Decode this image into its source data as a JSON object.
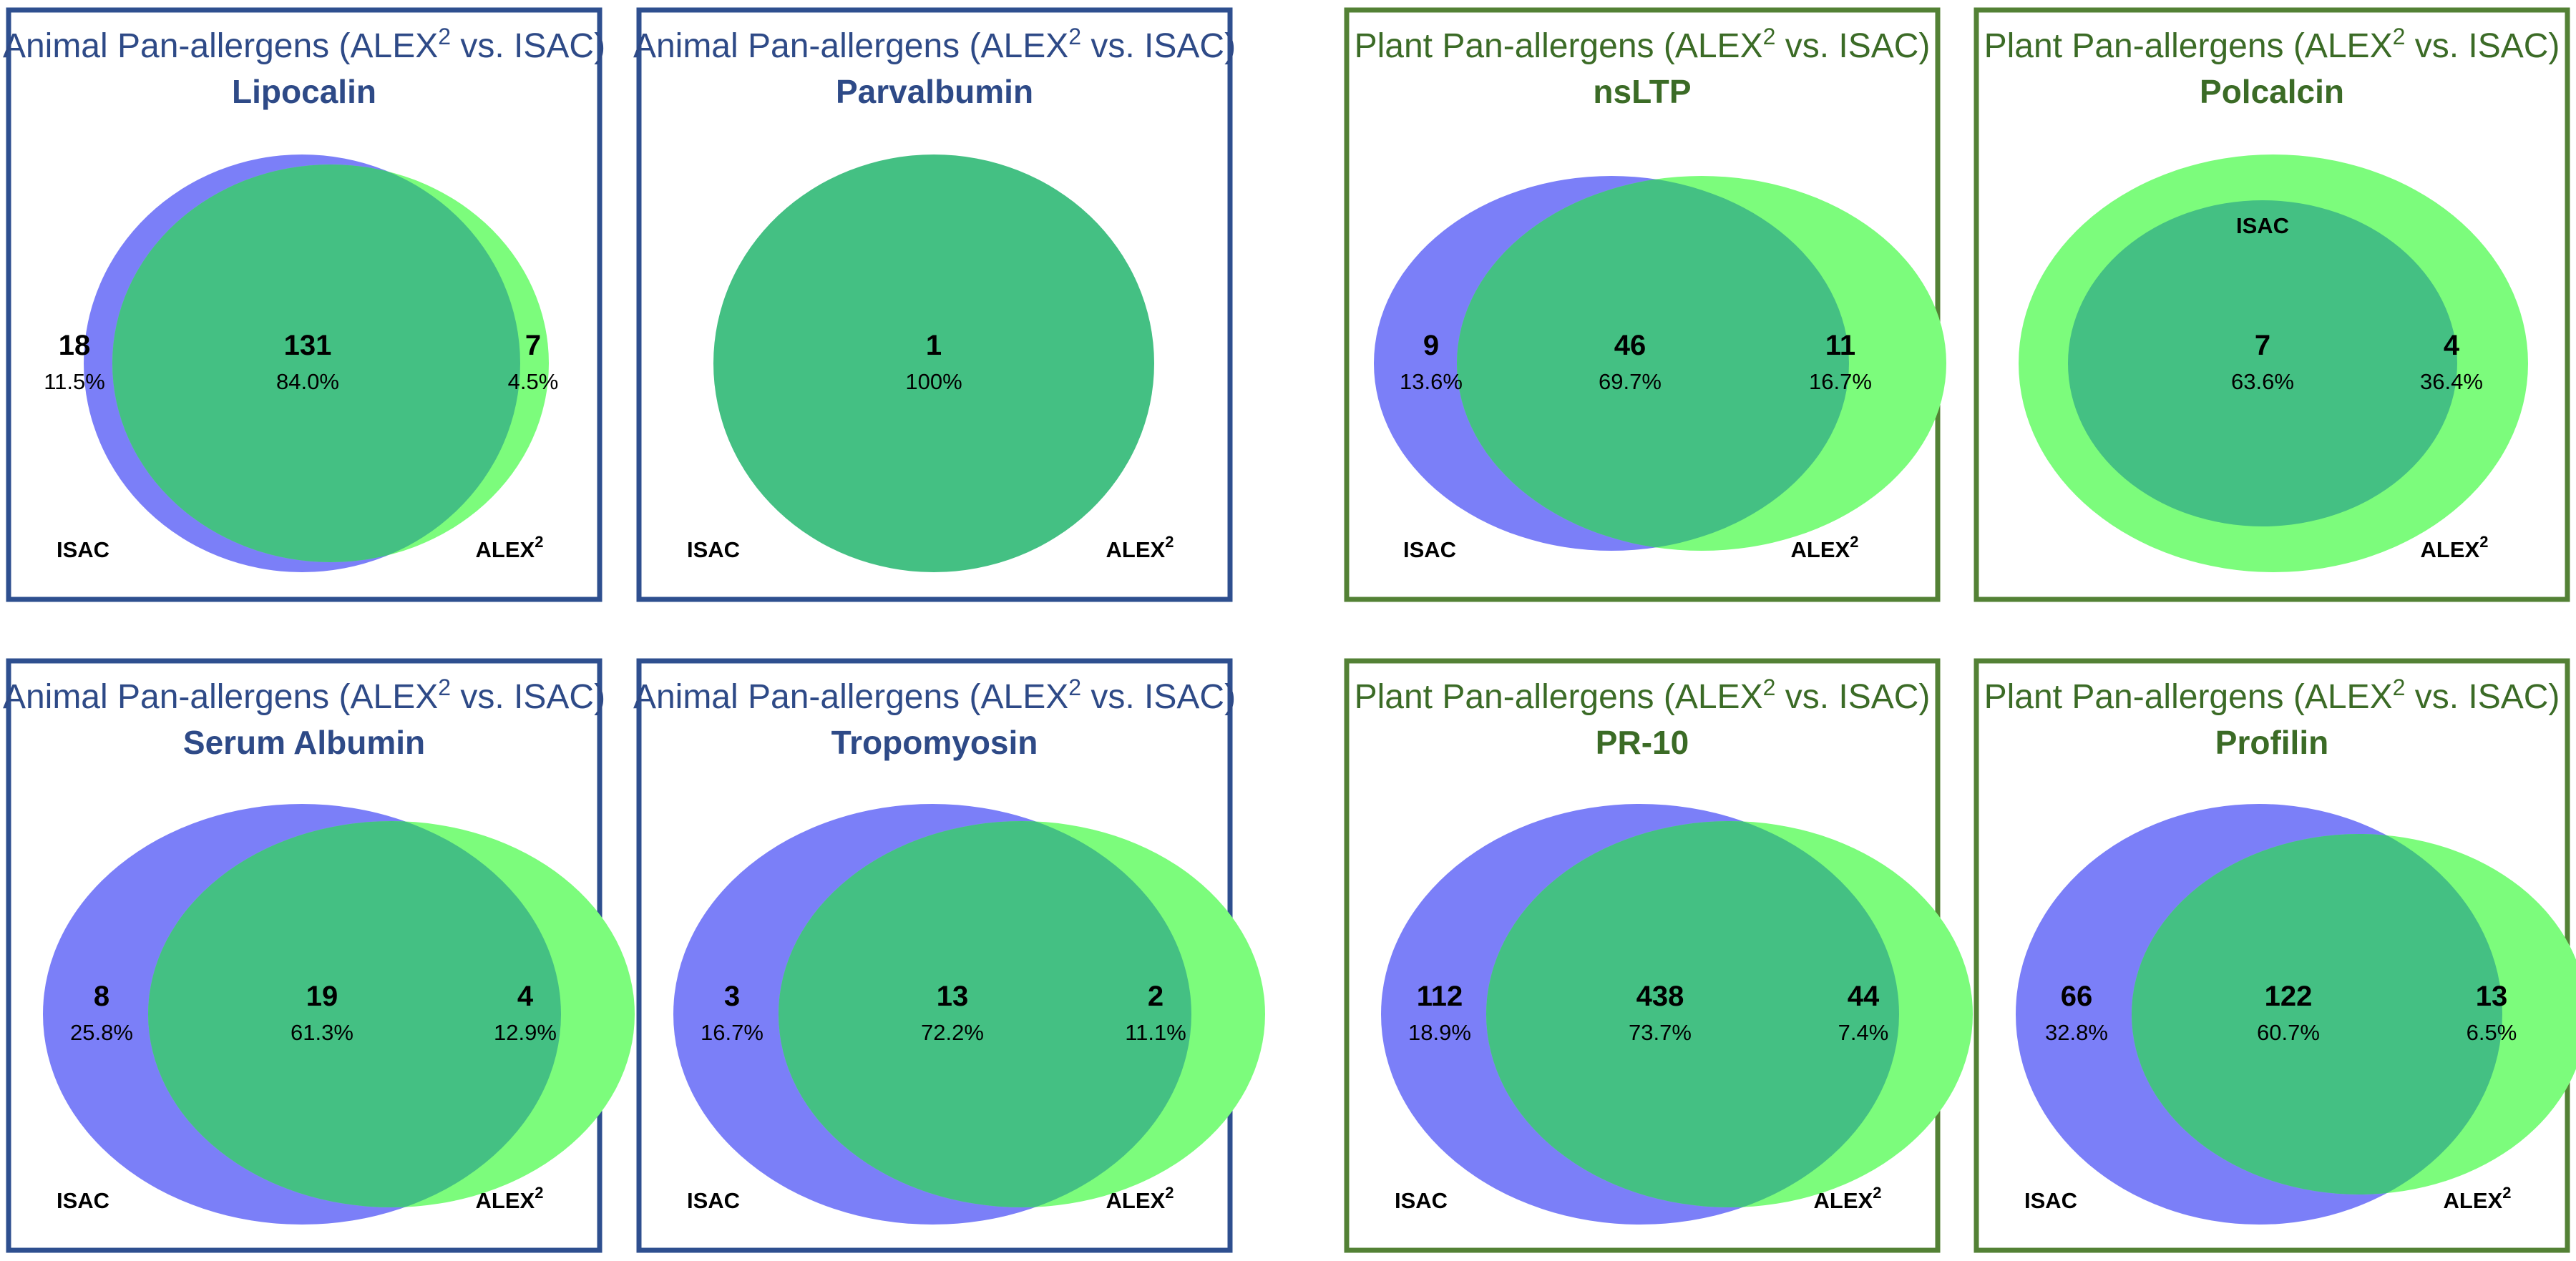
{
  "figure": "Venn diagrams of pan-allergen detection, ALEX2 vs. ISAC",
  "colors": {
    "animal_border": "#2e4f8f",
    "animal_title": "#2e4a87",
    "plant_border": "#538135",
    "plant_title": "#3b6b26",
    "isac_fill": "#7b7ff8",
    "alex_fill": "#7cfc7c",
    "overlap_fill": "#44c083"
  },
  "chart_data": [
    {
      "type": "venn",
      "group": "animal",
      "title": "Animal Pan-allergens (ALEX",
      "title_sup": "2",
      "title_tail": " vs. ISAC)",
      "subtitle": "Lipocalin",
      "layout": "isac-left",
      "isac_only": {
        "count": "18",
        "percent": "11.5%"
      },
      "both": {
        "count": "131",
        "percent": "84.0%"
      },
      "alex_only": {
        "count": "7",
        "percent": "4.5%"
      },
      "set_labels": {
        "isac": "ISAC",
        "alex": "ALEX",
        "alex_sup": "2"
      }
    },
    {
      "type": "venn",
      "group": "animal",
      "title": "Animal Pan-allergens (ALEX",
      "title_sup": "2",
      "title_tail": " vs. ISAC)",
      "subtitle": "Parvalbumin",
      "layout": "identical",
      "both": {
        "count": "1",
        "percent": "100%"
      },
      "set_labels": {
        "isac": "ISAC",
        "alex": "ALEX",
        "alex_sup": "2"
      }
    },
    {
      "type": "venn",
      "group": "plant",
      "title": "Plant Pan-allergens (ALEX",
      "title_sup": "2",
      "title_tail": " vs. ISAC)",
      "subtitle": "nsLTP",
      "layout": "symmetric",
      "isac_only": {
        "count": "9",
        "percent": "13.6%"
      },
      "both": {
        "count": "46",
        "percent": "69.7%"
      },
      "alex_only": {
        "count": "11",
        "percent": "16.7%"
      },
      "set_labels": {
        "isac": "ISAC",
        "alex": "ALEX",
        "alex_sup": "2"
      }
    },
    {
      "type": "venn",
      "group": "plant",
      "title": "Plant Pan-allergens (ALEX",
      "title_sup": "2",
      "title_tail": " vs. ISAC)",
      "subtitle": "Polcalcin",
      "layout": "nested",
      "both": {
        "count": "7",
        "percent": "63.6%"
      },
      "alex_only": {
        "count": "4",
        "percent": "36.4%"
      },
      "set_labels": {
        "isac": "ISAC",
        "alex": "ALEX",
        "alex_sup": "2"
      }
    },
    {
      "type": "venn",
      "group": "animal",
      "title": "Animal Pan-allergens (ALEX",
      "title_sup": "2",
      "title_tail": " vs. ISAC)",
      "subtitle": "Serum Albumin",
      "layout": "alex-right",
      "isac_only": {
        "count": "8",
        "percent": "25.8%"
      },
      "both": {
        "count": "19",
        "percent": "61.3%"
      },
      "alex_only": {
        "count": "4",
        "percent": "12.9%"
      },
      "set_labels": {
        "isac": "ISAC",
        "alex": "ALEX",
        "alex_sup": "2"
      }
    },
    {
      "type": "venn",
      "group": "animal",
      "title": "Animal Pan-allergens (ALEX",
      "title_sup": "2",
      "title_tail": " vs. ISAC)",
      "subtitle": "Tropomyosin",
      "layout": "alex-right",
      "isac_only": {
        "count": "3",
        "percent": "16.7%"
      },
      "both": {
        "count": "13",
        "percent": "72.2%"
      },
      "alex_only": {
        "count": "2",
        "percent": "11.1%"
      },
      "set_labels": {
        "isac": "ISAC",
        "alex": "ALEX",
        "alex_sup": "2"
      }
    },
    {
      "type": "venn",
      "group": "plant",
      "title": "Plant Pan-allergens (ALEX",
      "title_sup": "2",
      "title_tail": " vs. ISAC)",
      "subtitle": "PR-10",
      "layout": "alex-right",
      "isac_only": {
        "count": "112",
        "percent": "18.9%"
      },
      "both": {
        "count": "438",
        "percent": "73.7%"
      },
      "alex_only": {
        "count": "44",
        "percent": "7.4%"
      },
      "set_labels": {
        "isac": "ISAC",
        "alex": "ALEX",
        "alex_sup": "2"
      }
    },
    {
      "type": "venn",
      "group": "plant",
      "title": "Plant Pan-allergens (ALEX",
      "title_sup": "2",
      "title_tail": " vs. ISAC)",
      "subtitle": "Profilin",
      "layout": "small-alex",
      "isac_only": {
        "count": "66",
        "percent": "32.8%"
      },
      "both": {
        "count": "122",
        "percent": "60.7%"
      },
      "alex_only": {
        "count": "13",
        "percent": "6.5%"
      },
      "set_labels": {
        "isac": "ISAC",
        "alex": "ALEX",
        "alex_sup": "2"
      }
    }
  ]
}
